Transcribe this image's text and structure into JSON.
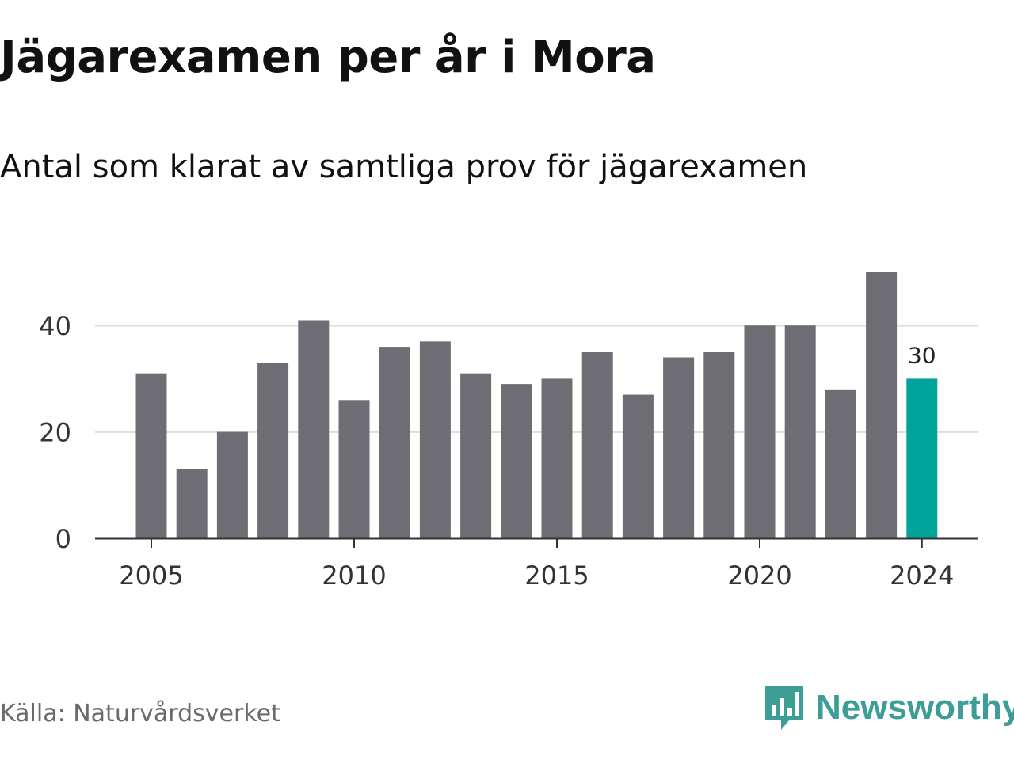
{
  "title": "Jägarexamen per år i Mora",
  "subtitle": "Antal som klarat av samtliga prov för jägarexamen",
  "source": "Källa: Naturvårdsverket",
  "brand": {
    "name": "Newsworthy",
    "icon": "newsworthy-logo-icon",
    "color": "#3c9e95"
  },
  "colors": {
    "bar": "#6e6d73",
    "highlight": "#00a49a",
    "grid": "#dddddd",
    "axis": "#333333"
  },
  "chart_data": {
    "type": "bar",
    "title": "Jägarexamen per år i Mora",
    "subtitle": "Antal som klarat av samtliga prov för jägarexamen",
    "xlabel": "",
    "ylabel": "",
    "categories": [
      2005,
      2006,
      2007,
      2008,
      2009,
      2010,
      2011,
      2012,
      2013,
      2014,
      2015,
      2016,
      2017,
      2018,
      2019,
      2020,
      2021,
      2022,
      2023,
      2024
    ],
    "values": [
      31,
      13,
      20,
      33,
      41,
      26,
      36,
      37,
      31,
      29,
      30,
      35,
      27,
      34,
      35,
      40,
      40,
      28,
      50,
      30
    ],
    "x_ticks": [
      2005,
      2010,
      2015,
      2020,
      2024
    ],
    "y_ticks": [
      0,
      20,
      40
    ],
    "ylim": [
      0,
      50
    ],
    "grid": true,
    "highlight": {
      "category": 2024,
      "label": "30"
    }
  }
}
